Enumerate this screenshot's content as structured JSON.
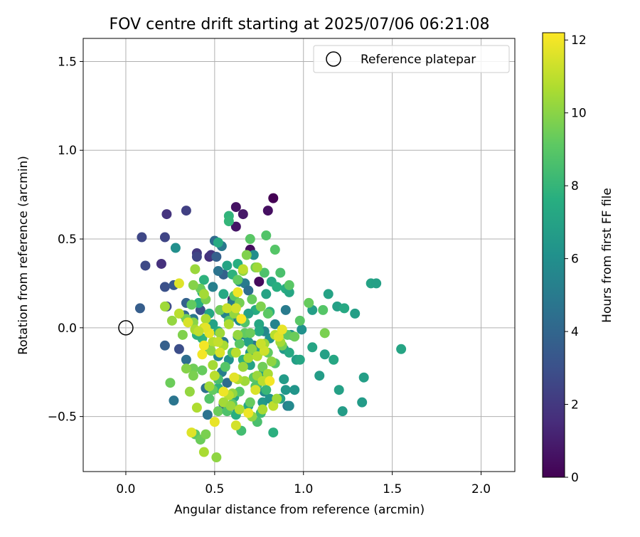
{
  "chart_data": {
    "type": "scatter",
    "title": "FOV centre drift starting at 2025/07/06 06:21:08",
    "xlabel": "Angular distance from reference (arcmin)",
    "ylabel": "Rotation from reference (arcmin)",
    "xlim": [
      -0.24,
      2.19
    ],
    "ylim": [
      -0.81,
      1.63
    ],
    "xticks": [
      0.0,
      0.5,
      1.0,
      1.5,
      2.0
    ],
    "xtick_labels": [
      "0.0",
      "0.5",
      "1.0",
      "1.5",
      "2.0"
    ],
    "yticks": [
      -0.5,
      0.0,
      0.5,
      1.0,
      1.5
    ],
    "ytick_labels": [
      "−0.5",
      "0.0",
      "0.5",
      "1.0",
      "1.5"
    ],
    "grid": true,
    "legend": {
      "position": "top-right",
      "label": "Reference platepar"
    },
    "reference_point": {
      "x": 0.0,
      "y": 0.0
    },
    "colorbar": {
      "label": "Hours from first FF file",
      "min": 0,
      "max": 12.2,
      "ticks": [
        0,
        2,
        4,
        6,
        8,
        10,
        12
      ],
      "colormap": "viridis"
    },
    "points": [
      [
        0.83,
        0.73,
        0.0
      ],
      [
        0.8,
        0.66,
        0.5
      ],
      [
        0.66,
        0.64,
        0.8
      ],
      [
        0.62,
        0.68,
        0.6
      ],
      [
        0.62,
        0.57,
        0.7
      ],
      [
        0.7,
        0.44,
        0.4
      ],
      [
        0.75,
        0.26,
        0.3
      ],
      [
        0.6,
        0.16,
        0.9
      ],
      [
        0.23,
        0.64,
        1.8
      ],
      [
        0.34,
        0.66,
        2.3
      ],
      [
        0.09,
        0.51,
        2.6
      ],
      [
        0.22,
        0.51,
        2.5
      ],
      [
        0.2,
        0.36,
        1.7
      ],
      [
        0.11,
        0.35,
        2.7
      ],
      [
        0.4,
        0.42,
        2.0
      ],
      [
        0.4,
        0.4,
        2.5
      ],
      [
        0.47,
        0.4,
        1.6
      ],
      [
        0.48,
        0.41,
        1.9
      ],
      [
        0.22,
        0.23,
        3.0
      ],
      [
        0.27,
        0.24,
        3.4
      ],
      [
        0.08,
        0.11,
        3.6
      ],
      [
        0.23,
        0.12,
        2.8
      ],
      [
        0.34,
        0.14,
        3.8
      ],
      [
        0.42,
        0.1,
        3.0
      ],
      [
        0.33,
        0.07,
        4.1
      ],
      [
        0.38,
        0.05,
        4.8
      ],
      [
        0.22,
        -0.1,
        3.7
      ],
      [
        0.3,
        -0.12,
        2.9
      ],
      [
        0.34,
        -0.18,
        4.4
      ],
      [
        0.27,
        -0.41,
        4.7
      ],
      [
        0.45,
        -0.34,
        4.5
      ],
      [
        0.46,
        -0.49,
        4.6
      ],
      [
        0.5,
        0.49,
        4.2
      ],
      [
        0.51,
        0.4,
        3.7
      ],
      [
        0.54,
        0.46,
        4.9
      ],
      [
        0.55,
        0.3,
        3.8
      ],
      [
        0.52,
        0.32,
        4.6
      ],
      [
        0.49,
        0.23,
        5.2
      ],
      [
        0.28,
        0.45,
        6.0
      ],
      [
        0.56,
        0.08,
        5.4
      ],
      [
        0.6,
        0.14,
        5.0
      ],
      [
        0.64,
        0.26,
        5.5
      ],
      [
        0.67,
        0.25,
        5.0
      ],
      [
        0.72,
        0.41,
        5.9
      ],
      [
        0.69,
        0.21,
        4.4
      ],
      [
        0.62,
        0.06,
        4.2
      ],
      [
        0.64,
        0.04,
        5.8
      ],
      [
        0.67,
        -0.04,
        5.3
      ],
      [
        0.72,
        -0.1,
        4.8
      ],
      [
        0.7,
        -0.14,
        6.3
      ],
      [
        0.55,
        -0.08,
        4.9
      ],
      [
        0.52,
        -0.16,
        5.6
      ],
      [
        0.54,
        -0.25,
        5.1
      ],
      [
        0.57,
        -0.31,
        4.3
      ],
      [
        0.55,
        -0.43,
        4.0
      ],
      [
        0.6,
        -0.44,
        4.8
      ],
      [
        0.58,
        -0.18,
        6.2
      ],
      [
        0.63,
        -0.05,
        5.9
      ],
      [
        0.78,
        -0.02,
        5.6
      ],
      [
        0.81,
        -0.06,
        6.1
      ],
      [
        0.84,
        0.02,
        5.4
      ],
      [
        0.9,
        0.1,
        5.0
      ],
      [
        0.89,
        -0.12,
        6.5
      ],
      [
        0.93,
        -0.04,
        6.0
      ],
      [
        0.91,
        -0.44,
        4.9
      ],
      [
        0.9,
        -0.35,
        6.4
      ],
      [
        0.89,
        -0.29,
        6.6
      ],
      [
        0.95,
        -0.35,
        6.3
      ],
      [
        0.99,
        -0.01,
        6.1
      ],
      [
        0.96,
        -0.18,
        6.8
      ],
      [
        0.78,
        -0.36,
        5.8
      ],
      [
        0.77,
        -0.42,
        6.5
      ],
      [
        0.87,
        -0.4,
        6.9
      ],
      [
        0.81,
        -0.4,
        6.2
      ],
      [
        0.92,
        -0.44,
        5.7
      ],
      [
        0.77,
        -0.26,
        6.9
      ],
      [
        1.05,
        0.1,
        6.8
      ],
      [
        1.12,
        -0.15,
        6.9
      ],
      [
        1.05,
        -0.11,
        7.1
      ],
      [
        1.17,
        -0.18,
        7.2
      ],
      [
        1.14,
        0.19,
        7.0
      ],
      [
        1.19,
        0.12,
        6.9
      ],
      [
        1.23,
        0.11,
        7.3
      ],
      [
        1.29,
        0.08,
        6.8
      ],
      [
        1.38,
        0.25,
        7.0
      ],
      [
        1.41,
        0.25,
        6.9
      ],
      [
        1.55,
        -0.12,
        7.1
      ],
      [
        1.34,
        -0.28,
        6.8
      ],
      [
        1.2,
        -0.35,
        6.9
      ],
      [
        1.22,
        -0.47,
        6.7
      ],
      [
        1.33,
        -0.42,
        6.6
      ],
      [
        1.09,
        -0.27,
        6.7
      ],
      [
        0.98,
        -0.18,
        7.2
      ],
      [
        0.92,
        -0.14,
        7.3
      ],
      [
        0.9,
        0.22,
        7.5
      ],
      [
        0.92,
        0.2,
        7.2
      ],
      [
        0.58,
        0.63,
        7.9
      ],
      [
        0.58,
        0.6,
        8.0
      ],
      [
        0.52,
        0.48,
        7.4
      ],
      [
        0.79,
        0.19,
        7.0
      ],
      [
        0.82,
        0.26,
        7.3
      ],
      [
        0.85,
        0.23,
        7.6
      ],
      [
        0.81,
        0.09,
        7.8
      ],
      [
        0.75,
        0.02,
        7.2
      ],
      [
        0.73,
        0.1,
        7.5
      ],
      [
        0.69,
        0.08,
        6.9
      ],
      [
        0.75,
        -0.02,
        7.4
      ],
      [
        0.69,
        -0.08,
        6.9
      ],
      [
        0.66,
        -0.18,
        7.8
      ],
      [
        0.7,
        -0.21,
        7.0
      ],
      [
        0.76,
        -0.13,
        7.1
      ],
      [
        0.55,
        0.19,
        7.3
      ],
      [
        0.6,
        0.3,
        7.8
      ],
      [
        0.63,
        0.36,
        7.6
      ],
      [
        0.57,
        0.35,
        7.1
      ],
      [
        0.44,
        0.27,
        7.8
      ],
      [
        0.43,
        0.2,
        7.5
      ],
      [
        0.41,
        0.14,
        7.6
      ],
      [
        0.47,
        0.08,
        7.2
      ],
      [
        0.49,
        0.02,
        7.0
      ],
      [
        0.52,
        -0.02,
        7.4
      ],
      [
        0.43,
        -0.06,
        7.9
      ],
      [
        0.4,
        -0.04,
        7.7
      ],
      [
        0.47,
        -0.12,
        7.6
      ],
      [
        0.52,
        -0.34,
        7.8
      ],
      [
        0.61,
        -0.39,
        7.1
      ],
      [
        0.62,
        -0.49,
        7.6
      ],
      [
        0.69,
        -0.44,
        7.2
      ],
      [
        0.74,
        -0.32,
        7.9
      ],
      [
        0.79,
        -0.35,
        8.1
      ],
      [
        0.83,
        -0.59,
        7.7
      ],
      [
        0.65,
        -0.58,
        8.4
      ],
      [
        0.74,
        -0.53,
        8.6
      ],
      [
        0.76,
        -0.48,
        8.3
      ],
      [
        0.79,
        0.52,
        8.8
      ],
      [
        0.7,
        0.5,
        9.0
      ],
      [
        0.84,
        0.44,
        8.9
      ],
      [
        0.78,
        0.31,
        8.7
      ],
      [
        0.87,
        0.31,
        8.6
      ],
      [
        0.92,
        0.24,
        9.0
      ],
      [
        0.73,
        0.34,
        9.5
      ],
      [
        0.68,
        0.41,
        9.8
      ],
      [
        0.63,
        0.27,
        9.2
      ],
      [
        0.61,
        0.18,
        8.9
      ],
      [
        0.64,
        0.14,
        9.6
      ],
      [
        0.67,
        0.03,
        8.8
      ],
      [
        0.67,
        -0.03,
        9.2
      ],
      [
        0.7,
        -0.03,
        9.4
      ],
      [
        0.64,
        -0.09,
        9.0
      ],
      [
        0.6,
        -0.14,
        8.7
      ],
      [
        0.56,
        -0.22,
        8.9
      ],
      [
        0.52,
        -0.29,
        8.6
      ],
      [
        0.49,
        -0.35,
        9.2
      ],
      [
        0.47,
        -0.4,
        8.8
      ],
      [
        0.52,
        -0.47,
        9.4
      ],
      [
        0.57,
        -0.47,
        8.7
      ],
      [
        0.6,
        -0.43,
        9.1
      ],
      [
        0.64,
        -0.36,
        8.9
      ],
      [
        0.7,
        -0.42,
        9.3
      ],
      [
        0.73,
        -0.33,
        8.8
      ],
      [
        0.72,
        -0.28,
        9.0
      ],
      [
        0.77,
        -0.22,
        9.5
      ],
      [
        0.8,
        -0.14,
        9.2
      ],
      [
        0.84,
        -0.2,
        8.9
      ],
      [
        0.88,
        -0.1,
        9.6
      ],
      [
        0.91,
        -0.04,
        9.1
      ],
      [
        0.95,
        -0.05,
        9.4
      ],
      [
        0.98,
        0.04,
        9.0
      ],
      [
        1.03,
        0.14,
        9.3
      ],
      [
        1.11,
        0.1,
        8.9
      ],
      [
        1.12,
        -0.03,
        9.7
      ],
      [
        0.8,
        0.08,
        9.1
      ],
      [
        0.76,
        0.12,
        9.8
      ],
      [
        0.71,
        0.16,
        9.3
      ],
      [
        0.58,
        0.04,
        9.0
      ],
      [
        0.53,
        0.1,
        9.5
      ],
      [
        0.45,
        0.16,
        9.7
      ],
      [
        0.42,
        0.22,
        9.4
      ],
      [
        0.38,
        0.24,
        9.9
      ],
      [
        0.37,
        0.13,
        9.2
      ],
      [
        0.34,
        0.05,
        9.6
      ],
      [
        0.32,
        -0.04,
        9.8
      ],
      [
        0.38,
        -0.23,
        9.5
      ],
      [
        0.43,
        -0.24,
        9.3
      ],
      [
        0.38,
        -0.27,
        9.7
      ],
      [
        0.34,
        -0.23,
        9.9
      ],
      [
        0.25,
        -0.31,
        9.4
      ],
      [
        0.39,
        -0.6,
        9.0
      ],
      [
        0.42,
        -0.63,
        9.4
      ],
      [
        0.45,
        -0.6,
        9.7
      ],
      [
        0.51,
        -0.73,
        10.1
      ],
      [
        0.44,
        -0.7,
        10.6
      ],
      [
        0.26,
        0.04,
        10.2
      ],
      [
        0.22,
        0.12,
        10.4
      ],
      [
        0.38,
        0.03,
        10.0
      ],
      [
        0.39,
        -0.01,
        10.6
      ],
      [
        0.39,
        0.33,
        10.3
      ],
      [
        0.44,
        0.19,
        10.5
      ],
      [
        0.66,
        0.32,
        10.1
      ],
      [
        0.66,
        0.33,
        11.0
      ],
      [
        0.74,
        0.34,
        10.4
      ],
      [
        0.61,
        0.08,
        10.2
      ],
      [
        0.58,
        0.02,
        10.7
      ],
      [
        0.53,
        -0.03,
        10.4
      ],
      [
        0.49,
        -0.08,
        10.8
      ],
      [
        0.48,
        -0.13,
        10.1
      ],
      [
        0.55,
        -0.1,
        10.6
      ],
      [
        0.63,
        -0.04,
        10.2
      ],
      [
        0.62,
        -0.14,
        10.9
      ],
      [
        0.66,
        -0.22,
        10.3
      ],
      [
        0.69,
        -0.17,
        10.6
      ],
      [
        0.71,
        -0.12,
        10.0
      ],
      [
        0.74,
        -0.16,
        10.8
      ],
      [
        0.78,
        -0.09,
        10.4
      ],
      [
        0.84,
        -0.04,
        10.9
      ],
      [
        0.87,
        -0.08,
        10.5
      ],
      [
        0.82,
        -0.19,
        10.1
      ],
      [
        0.8,
        -0.26,
        10.6
      ],
      [
        0.74,
        -0.27,
        10.3
      ],
      [
        0.77,
        -0.3,
        10.9
      ],
      [
        0.67,
        -0.3,
        10.4
      ],
      [
        0.63,
        -0.29,
        10.7
      ],
      [
        0.6,
        -0.37,
        10.2
      ],
      [
        0.58,
        -0.38,
        10.9
      ],
      [
        0.55,
        -0.42,
        10.5
      ],
      [
        0.59,
        -0.44,
        10.3
      ],
      [
        0.64,
        -0.46,
        10.8
      ],
      [
        0.71,
        -0.5,
        10.1
      ],
      [
        0.77,
        -0.46,
        10.6
      ],
      [
        0.83,
        -0.44,
        11.0
      ],
      [
        0.85,
        -0.4,
        10.4
      ],
      [
        0.4,
        -0.45,
        10.7
      ],
      [
        0.36,
        -0.36,
        10.2
      ],
      [
        0.49,
        -0.21,
        10.5
      ],
      [
        0.5,
        -0.27,
        10.9
      ],
      [
        0.47,
        -0.33,
        10.4
      ],
      [
        0.45,
        0.05,
        10.7
      ],
      [
        0.44,
        0.0,
        11.3
      ],
      [
        0.3,
        0.08,
        10.9
      ],
      [
        0.35,
        0.03,
        11.5
      ],
      [
        0.3,
        0.25,
        11.6
      ],
      [
        0.57,
        0.11,
        11.2
      ],
      [
        0.61,
        -0.28,
        11.7
      ],
      [
        0.55,
        -0.36,
        11.9
      ],
      [
        0.62,
        -0.55,
        11.4
      ],
      [
        0.5,
        -0.53,
        11.8
      ],
      [
        0.37,
        -0.59,
        11.6
      ],
      [
        0.47,
        -0.03,
        11.8
      ],
      [
        0.44,
        -0.1,
        12.0
      ],
      [
        0.45,
        0.0,
        11.7
      ],
      [
        0.53,
        -0.14,
        11.5
      ],
      [
        0.65,
        0.05,
        12.1
      ],
      [
        0.63,
        0.2,
        11.9
      ],
      [
        0.73,
        -0.35,
        11.5
      ],
      [
        0.69,
        -0.48,
        11.9
      ],
      [
        0.78,
        -0.13,
        11.3
      ],
      [
        0.81,
        -0.3,
        12.0
      ],
      [
        0.86,
        -0.05,
        11.6
      ],
      [
        0.88,
        -0.01,
        11.8
      ],
      [
        0.76,
        -0.09,
        11.2
      ],
      [
        0.62,
        0.11,
        11.4
      ],
      [
        0.52,
        -0.08,
        11.1
      ],
      [
        0.41,
        -0.02,
        11.0
      ],
      [
        0.43,
        -0.15,
        12.0
      ]
    ]
  }
}
